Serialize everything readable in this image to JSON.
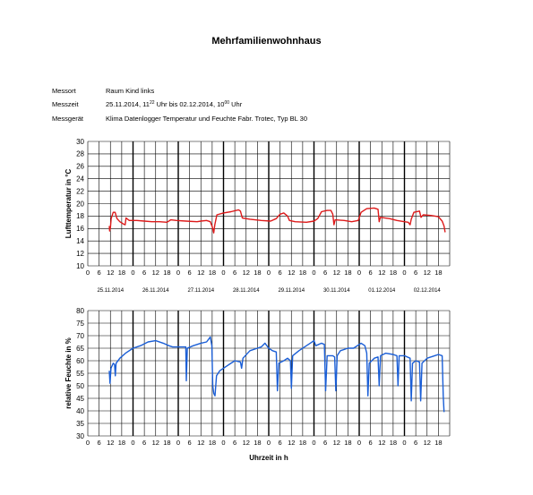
{
  "title": "Mehrfamilienwohnhaus",
  "meta": {
    "messort": {
      "label": "Messort",
      "value": "Raum Kind links"
    },
    "messzeit": {
      "label": "Messzeit",
      "start_date": "25.11.2014, 11",
      "start_sup": "22",
      "mid": " Uhr bis 02.12.2014, 10",
      "end_sup": "00",
      "end": " Uhr"
    },
    "messgeraet": {
      "label": "Messgerät",
      "value": "Klima Datenlogger Temperatur und Feuchte Fabr. Trotec, Typ BL 30"
    }
  },
  "colors": {
    "temperature": "#dd1a1a",
    "humidity": "#1a5ed6",
    "grid": "#000000"
  },
  "chart_data": [
    {
      "type": "line",
      "ylabel": "Lufttemperatur in °C",
      "ylim": [
        10,
        30
      ],
      "yticks": [
        10,
        12,
        14,
        16,
        18,
        20,
        22,
        24,
        26,
        28,
        30
      ],
      "hour_ticks": [
        "0",
        "6",
        "12",
        "18"
      ],
      "days": [
        "25.11.2014",
        "26.11.2014",
        "27.11.2014",
        "28.11.2014",
        "29.11.2014",
        "30.11.2014",
        "01.12.2014",
        "02.12.2014"
      ],
      "grid": true,
      "series": [
        {
          "points": [
            [
              11.4,
              16.4
            ],
            [
              11.6,
              15.6
            ],
            [
              12,
              16.2
            ],
            [
              12.4,
              17.6
            ],
            [
              13.5,
              18.6
            ],
            [
              14.5,
              18.6
            ],
            [
              15.5,
              17.6
            ],
            [
              17,
              17.1
            ],
            [
              19,
              16.7
            ],
            [
              19.8,
              16.6
            ],
            [
              20.3,
              17.7
            ],
            [
              22,
              17.3
            ],
            [
              26,
              17.3
            ],
            [
              30,
              17.2
            ],
            [
              34,
              17.1
            ],
            [
              38,
              17.1
            ],
            [
              42,
              17.0
            ],
            [
              44,
              17.4
            ],
            [
              47,
              17.3
            ],
            [
              52,
              17.2
            ],
            [
              58,
              17.1
            ],
            [
              60,
              17.2
            ],
            [
              63,
              17.3
            ],
            [
              65,
              17.1
            ],
            [
              66,
              16.3
            ],
            [
              66.8,
              15.3
            ],
            [
              67.4,
              16.6
            ],
            [
              68.5,
              18.2
            ],
            [
              72,
              18.5
            ],
            [
              76,
              18.7
            ],
            [
              80,
              19.0
            ],
            [
              81,
              18.8
            ],
            [
              82,
              17.7
            ],
            [
              86,
              17.5
            ],
            [
              92,
              17.3
            ],
            [
              97,
              17.2
            ],
            [
              100,
              17.6
            ],
            [
              102,
              18.3
            ],
            [
              104,
              18.5
            ],
            [
              106,
              18.0
            ],
            [
              107,
              17.3
            ],
            [
              110,
              17.1
            ],
            [
              116,
              17.0
            ],
            [
              120,
              17.2
            ],
            [
              122,
              17.6
            ],
            [
              124,
              18.7
            ],
            [
              127,
              18.9
            ],
            [
              129,
              18.9
            ],
            [
              130,
              18.3
            ],
            [
              130.6,
              16.6
            ],
            [
              131.2,
              17.4
            ],
            [
              136,
              17.3
            ],
            [
              140,
              17.1
            ],
            [
              143.5,
              17.3
            ],
            [
              145,
              18.6
            ],
            [
              148,
              19.2
            ],
            [
              152,
              19.3
            ],
            [
              154,
              19.1
            ],
            [
              154.6,
              17.1
            ],
            [
              155.2,
              17.8
            ],
            [
              160,
              17.6
            ],
            [
              164,
              17.3
            ],
            [
              168,
              17.1
            ],
            [
              170,
              17.0
            ],
            [
              171,
              16.6
            ],
            [
              171.6,
              17.5
            ],
            [
              173,
              18.6
            ],
            [
              176,
              18.8
            ],
            [
              176.8,
              17.8
            ],
            [
              178,
              18.2
            ],
            [
              182,
              18.1
            ],
            [
              186,
              17.9
            ],
            [
              188,
              17.2
            ],
            [
              189,
              16.4
            ],
            [
              189.6,
              15.4
            ]
          ]
        }
      ]
    },
    {
      "type": "line",
      "ylabel": "relative Feuchte in %",
      "xlabel": "Uhrzeit in h",
      "ylim": [
        30,
        80
      ],
      "yticks": [
        30,
        35,
        40,
        45,
        50,
        55,
        60,
        65,
        70,
        75,
        80
      ],
      "hour_ticks": [
        "0",
        "6",
        "12",
        "18"
      ],
      "grid": true,
      "series": [
        {
          "points": [
            [
              11.4,
              56
            ],
            [
              11.8,
              51
            ],
            [
              12.3,
              57
            ],
            [
              13.5,
              59
            ],
            [
              14.2,
              58.5
            ],
            [
              14.6,
              54
            ],
            [
              15,
              59
            ],
            [
              17,
              61
            ],
            [
              20,
              63
            ],
            [
              24,
              65
            ],
            [
              28,
              66
            ],
            [
              32,
              67.5
            ],
            [
              36,
              68
            ],
            [
              40,
              67
            ],
            [
              43,
              66
            ],
            [
              45,
              65.5
            ],
            [
              50,
              65.5
            ],
            [
              52,
              65.5
            ],
            [
              52.3,
              52
            ],
            [
              52.8,
              65
            ],
            [
              56,
              66
            ],
            [
              60,
              67
            ],
            [
              63,
              67.5
            ],
            [
              65,
              69.5
            ],
            [
              65.8,
              66
            ],
            [
              66.3,
              50
            ],
            [
              66.8,
              47
            ],
            [
              67.5,
              46
            ],
            [
              68.3,
              54
            ],
            [
              70,
              56
            ],
            [
              74,
              58
            ],
            [
              78,
              60
            ],
            [
              81,
              59.5
            ],
            [
              81.6,
              57
            ],
            [
              82.3,
              61
            ],
            [
              86,
              64
            ],
            [
              90,
              65
            ],
            [
              92,
              65.5
            ],
            [
              94,
              67
            ],
            [
              96,
              65
            ],
            [
              98,
              64
            ],
            [
              100,
              63.5
            ],
            [
              100.6,
              48
            ],
            [
              101.3,
              59
            ],
            [
              104,
              60
            ],
            [
              106,
              61
            ],
            [
              107.5,
              60
            ],
            [
              108,
              49
            ],
            [
              108.7,
              62
            ],
            [
              112,
              64
            ],
            [
              116,
              66
            ],
            [
              118,
              67
            ],
            [
              120,
              68
            ],
            [
              121,
              66
            ],
            [
              124,
              67
            ],
            [
              125.5,
              66.5
            ],
            [
              126.2,
              48
            ],
            [
              127,
              62
            ],
            [
              130,
              62
            ],
            [
              131,
              61.5
            ],
            [
              131.6,
              48
            ],
            [
              132.3,
              62
            ],
            [
              134,
              64
            ],
            [
              138,
              65
            ],
            [
              141,
              65
            ],
            [
              145,
              67
            ],
            [
              147,
              66
            ],
            [
              148,
              63
            ],
            [
              148.6,
              46
            ],
            [
              149.3,
              59
            ],
            [
              152,
              61
            ],
            [
              154,
              61.5
            ],
            [
              154.6,
              50
            ],
            [
              155.3,
              62
            ],
            [
              158,
              63
            ],
            [
              162,
              62.5
            ],
            [
              164,
              62
            ],
            [
              164.6,
              50
            ],
            [
              165.2,
              62
            ],
            [
              168,
              62
            ],
            [
              171,
              61
            ],
            [
              171.6,
              44
            ],
            [
              172.3,
              59
            ],
            [
              174,
              60
            ],
            [
              176,
              59.5
            ],
            [
              176.6,
              44
            ],
            [
              177.3,
              59
            ],
            [
              180,
              61
            ],
            [
              184,
              62
            ],
            [
              186,
              62.5
            ],
            [
              188,
              62
            ],
            [
              188.6,
              46
            ],
            [
              189,
              39.5
            ]
          ]
        }
      ]
    }
  ]
}
